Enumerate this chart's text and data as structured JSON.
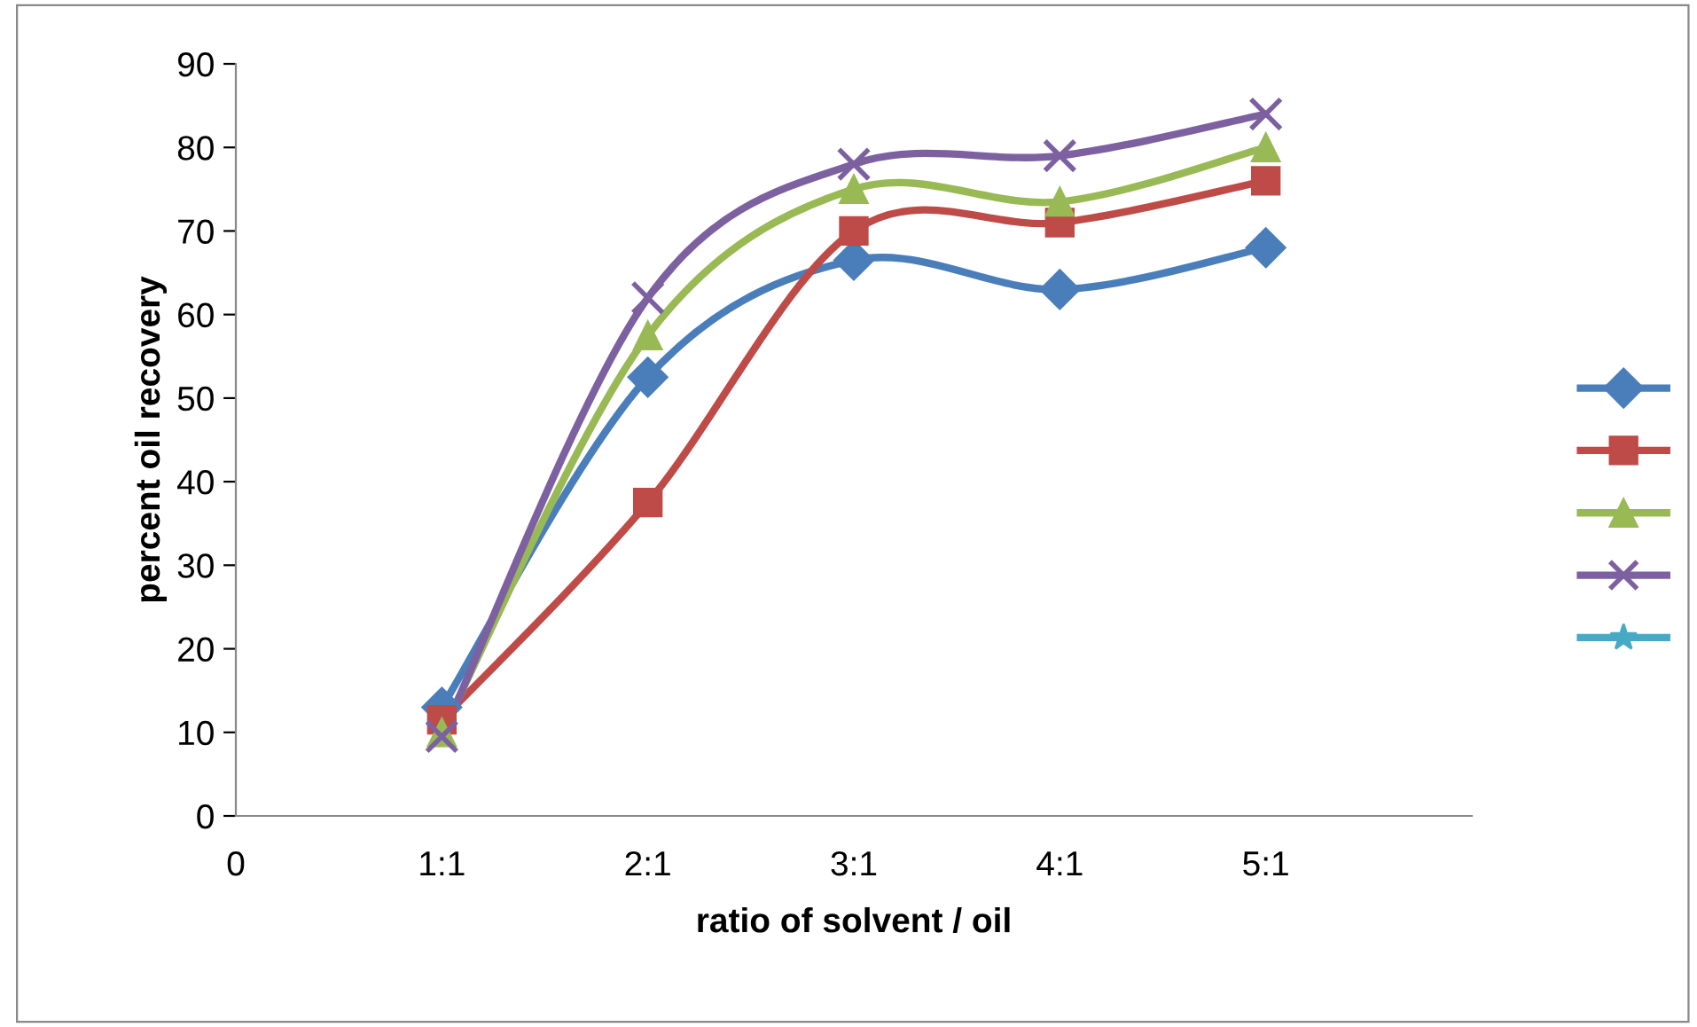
{
  "chart_data": {
    "type": "line",
    "xlabel": "ratio of solvent / oil",
    "ylabel": "percent oil recovery",
    "categories": [
      "0",
      "1:1",
      "2:1",
      "3:1",
      "4:1",
      "5:1",
      null
    ],
    "ylim": [
      0,
      90
    ],
    "yticks": [
      0,
      10,
      20,
      30,
      40,
      50,
      60,
      70,
      80,
      90
    ],
    "grid": false,
    "series": [
      {
        "color": "#4a7ebb",
        "marker": "diamond",
        "values": [
          null,
          13,
          52.5,
          66.5,
          63,
          68,
          null
        ]
      },
      {
        "color": "#be4b48",
        "marker": "square",
        "values": [
          null,
          11.5,
          37.5,
          70,
          71,
          76,
          null
        ]
      },
      {
        "color": "#98b954",
        "marker": "triangle",
        "values": [
          null,
          10,
          57.5,
          75,
          73.5,
          80,
          null
        ]
      },
      {
        "color": "#7d60a0",
        "marker": "cross",
        "values": [
          null,
          9.5,
          62,
          78,
          79,
          84,
          null
        ]
      },
      {
        "color": "#46aac5",
        "marker": "star",
        "values": [
          null,
          null,
          null,
          null,
          null,
          null,
          null
        ]
      }
    ]
  }
}
